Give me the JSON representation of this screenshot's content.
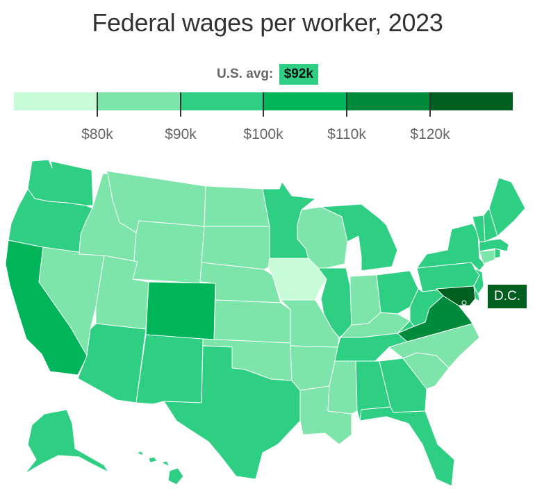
{
  "title": "Federal wages per worker, 2023",
  "legend": {
    "avg_label": "U.S. avg:",
    "avg_value": "$92k",
    "bins": [
      {
        "color": "#c8fcd8"
      },
      {
        "color": "#7ee5aa"
      },
      {
        "color": "#2ecf83"
      },
      {
        "color": "#00b45a"
      },
      {
        "color": "#008a3c"
      },
      {
        "color": "#005e1f"
      }
    ],
    "ticks": [
      "$80k",
      "$90k",
      "$100k",
      "$110k",
      "$120k"
    ]
  },
  "map": {
    "states": [
      {
        "id": "WA",
        "bin": 2
      },
      {
        "id": "OR",
        "bin": 2
      },
      {
        "id": "CA",
        "bin": 3
      },
      {
        "id": "NV",
        "bin": 1
      },
      {
        "id": "ID",
        "bin": 1
      },
      {
        "id": "MT",
        "bin": 1
      },
      {
        "id": "WY",
        "bin": 1
      },
      {
        "id": "UT",
        "bin": 1
      },
      {
        "id": "AZ",
        "bin": 2
      },
      {
        "id": "CO",
        "bin": 3
      },
      {
        "id": "NM",
        "bin": 2
      },
      {
        "id": "ND",
        "bin": 1
      },
      {
        "id": "SD",
        "bin": 1
      },
      {
        "id": "NE",
        "bin": 1
      },
      {
        "id": "KS",
        "bin": 1
      },
      {
        "id": "OK",
        "bin": 1
      },
      {
        "id": "TX",
        "bin": 2
      },
      {
        "id": "MN",
        "bin": 2
      },
      {
        "id": "IA",
        "bin": 0
      },
      {
        "id": "MO",
        "bin": 1
      },
      {
        "id": "AR",
        "bin": 1
      },
      {
        "id": "LA",
        "bin": 1
      },
      {
        "id": "WI",
        "bin": 1
      },
      {
        "id": "IL",
        "bin": 2
      },
      {
        "id": "MI",
        "bin": 2
      },
      {
        "id": "IN",
        "bin": 1
      },
      {
        "id": "KY",
        "bin": 1
      },
      {
        "id": "TN",
        "bin": 2
      },
      {
        "id": "MS",
        "bin": 1
      },
      {
        "id": "AL",
        "bin": 2
      },
      {
        "id": "OH",
        "bin": 2
      },
      {
        "id": "WV",
        "bin": 2
      },
      {
        "id": "GA",
        "bin": 2
      },
      {
        "id": "FL",
        "bin": 2
      },
      {
        "id": "SC",
        "bin": 1
      },
      {
        "id": "NC",
        "bin": 1
      },
      {
        "id": "VA",
        "bin": 4
      },
      {
        "id": "PA",
        "bin": 2
      },
      {
        "id": "NY",
        "bin": 2
      },
      {
        "id": "MD",
        "bin": 5
      },
      {
        "id": "DE",
        "bin": 2
      },
      {
        "id": "NJ",
        "bin": 2
      },
      {
        "id": "CT",
        "bin": 1
      },
      {
        "id": "RI",
        "bin": 2
      },
      {
        "id": "MA",
        "bin": 2
      },
      {
        "id": "VT",
        "bin": 2
      },
      {
        "id": "NH",
        "bin": 2
      },
      {
        "id": "ME",
        "bin": 2
      },
      {
        "id": "AK",
        "bin": 2
      },
      {
        "id": "HI",
        "bin": 2
      }
    ],
    "dc_label": "D.C.",
    "dc_bin": 5
  }
}
